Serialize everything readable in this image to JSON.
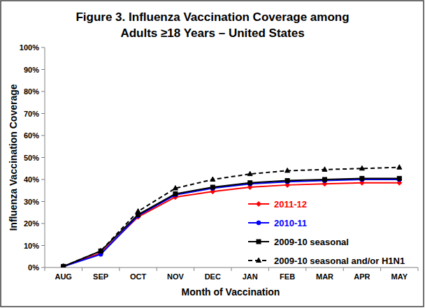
{
  "chart_data": {
    "type": "line",
    "title": "Figure 3. Influenza Vaccination Coverage among",
    "subtitle": "Adults ≥18 Years – United States",
    "x_label": "Month of Vaccination",
    "y_label": "Influenza Vaccination Coverage",
    "categories": [
      "AUG",
      "SEP",
      "OCT",
      "NOV",
      "DEC",
      "JAN",
      "FEB",
      "MAR",
      "APR",
      "MAY"
    ],
    "ylim": [
      0,
      100
    ],
    "yticks": [
      {
        "value": 0,
        "label": "0%"
      },
      {
        "value": 10,
        "label": "10%"
      },
      {
        "value": 20,
        "label": "20%"
      },
      {
        "value": 30,
        "label": "30%"
      },
      {
        "value": 40,
        "label": "40%"
      },
      {
        "value": 50,
        "label": "50%"
      },
      {
        "value": 60,
        "label": "60%"
      },
      {
        "value": 70,
        "label": "70%"
      },
      {
        "value": 80,
        "label": "80%"
      },
      {
        "value": 90,
        "label": "90%"
      },
      {
        "value": 100,
        "label": "100%"
      }
    ],
    "grid": false,
    "legend": "right",
    "series": [
      {
        "name": "2011-12",
        "color": "#ff0000",
        "marker": "diamond",
        "line_style": "solid",
        "values": [
          0.5,
          6.5,
          23,
          32,
          34.5,
          36.5,
          37.5,
          38,
          38.5,
          38.5
        ]
      },
      {
        "name": "2010-11",
        "color": "#0000ff",
        "marker": "circle",
        "line_style": "solid",
        "values": [
          0.5,
          6,
          23.5,
          33,
          36,
          38,
          39,
          39.5,
          40,
          40
        ]
      },
      {
        "name": "2009-10 seasonal",
        "color": "#000000",
        "marker": "square",
        "line_style": "solid",
        "values": [
          0.5,
          7.5,
          24,
          33.5,
          36.5,
          38.5,
          39.5,
          40,
          40.5,
          40.5
        ]
      },
      {
        "name": "2009-10 seasonal and/or H1N1",
        "color": "#000000",
        "marker": "triangle",
        "line_style": "dashed",
        "values": [
          0.5,
          7.5,
          25.5,
          36,
          40,
          42.5,
          44,
          44.5,
          45,
          45.5
        ]
      }
    ]
  }
}
